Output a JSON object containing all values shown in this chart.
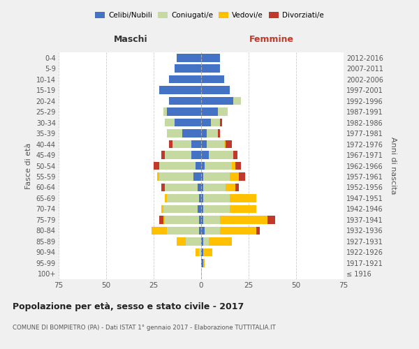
{
  "age_groups": [
    "100+",
    "95-99",
    "90-94",
    "85-89",
    "80-84",
    "75-79",
    "70-74",
    "65-69",
    "60-64",
    "55-59",
    "50-54",
    "45-49",
    "40-44",
    "35-39",
    "30-34",
    "25-29",
    "20-24",
    "15-19",
    "10-14",
    "5-9",
    "0-4"
  ],
  "birth_years": [
    "≤ 1916",
    "1917-1921",
    "1922-1926",
    "1927-1931",
    "1932-1936",
    "1937-1941",
    "1942-1946",
    "1947-1951",
    "1952-1956",
    "1957-1961",
    "1962-1966",
    "1967-1971",
    "1972-1976",
    "1977-1981",
    "1982-1986",
    "1987-1991",
    "1992-1996",
    "1997-2001",
    "2002-2006",
    "2007-2011",
    "2012-2016"
  ],
  "male": {
    "celibi": [
      0,
      0,
      0,
      0,
      1,
      1,
      2,
      1,
      2,
      4,
      3,
      5,
      5,
      10,
      14,
      18,
      17,
      22,
      17,
      14,
      13
    ],
    "coniugati": [
      0,
      0,
      1,
      8,
      17,
      18,
      18,
      17,
      17,
      18,
      19,
      14,
      10,
      8,
      5,
      2,
      0,
      0,
      0,
      0,
      0
    ],
    "vedovi": [
      0,
      0,
      2,
      5,
      8,
      1,
      1,
      1,
      0,
      1,
      0,
      0,
      0,
      0,
      0,
      0,
      0,
      0,
      0,
      0,
      0
    ],
    "divorziati": [
      0,
      0,
      0,
      0,
      0,
      2,
      0,
      0,
      2,
      0,
      3,
      2,
      2,
      0,
      0,
      0,
      0,
      0,
      0,
      0,
      0
    ]
  },
  "female": {
    "nubili": [
      0,
      1,
      1,
      1,
      2,
      1,
      1,
      1,
      1,
      1,
      2,
      4,
      3,
      3,
      5,
      9,
      17,
      15,
      12,
      10,
      10
    ],
    "coniugate": [
      0,
      0,
      0,
      3,
      8,
      9,
      14,
      14,
      12,
      14,
      14,
      13,
      9,
      6,
      5,
      5,
      4,
      0,
      0,
      0,
      0
    ],
    "vedove": [
      0,
      1,
      5,
      12,
      19,
      25,
      14,
      14,
      5,
      5,
      2,
      0,
      1,
      0,
      0,
      0,
      0,
      0,
      0,
      0,
      0
    ],
    "divorziate": [
      0,
      0,
      0,
      0,
      2,
      4,
      0,
      0,
      2,
      3,
      3,
      2,
      3,
      1,
      1,
      0,
      0,
      0,
      0,
      0,
      0
    ]
  },
  "colors": {
    "celibi": "#4472c4",
    "coniugati": "#c5d9a0",
    "vedovi": "#ffc000",
    "divorziati": "#c0392b"
  },
  "title": "Popolazione per età, sesso e stato civile - 2017",
  "subtitle": "COMUNE DI BOMPIETRO (PA) - Dati ISTAT 1° gennaio 2017 - Elaborazione TUTTITALIA.IT",
  "xlabel_left": "Maschi",
  "xlabel_right": "Femmine",
  "ylabel_left": "Fasce di età",
  "ylabel_right": "Anni di nascita",
  "xlim": 75,
  "bg_color": "#f0f0f0",
  "plot_bg": "#ffffff",
  "grid_color": "#cccccc"
}
